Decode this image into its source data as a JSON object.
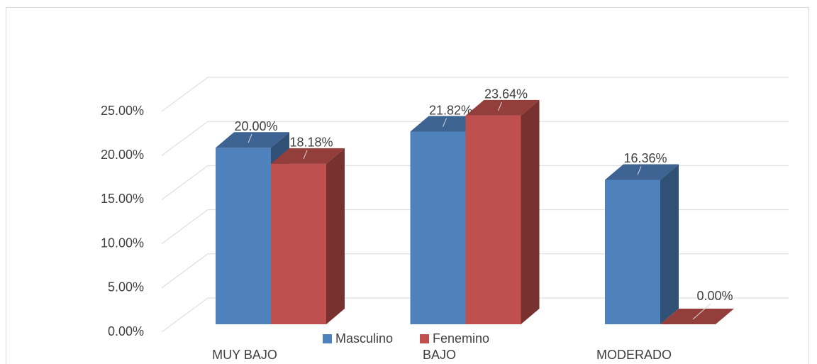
{
  "chart_data": {
    "type": "bar3d",
    "categories": [
      "MUY BAJO",
      "BAJO",
      "MODERADO"
    ],
    "series": [
      {
        "name": "Masculino",
        "color": "#4f81bd",
        "values": [
          20.0,
          21.82,
          16.36
        ],
        "value_labels": [
          "20.00%",
          "21.82%",
          "16.36%"
        ]
      },
      {
        "name": "Fenemino",
        "color": "#c0504d",
        "values": [
          18.18,
          23.64,
          0.0
        ],
        "value_labels": [
          "18.18%",
          "23.64%",
          "0.00%"
        ]
      }
    ],
    "ylim": [
      0,
      25
    ],
    "yticks": [
      {
        "value": 0,
        "label": "0.00%"
      },
      {
        "value": 5,
        "label": "5.00%"
      },
      {
        "value": 10,
        "label": "10.00%"
      },
      {
        "value": 15,
        "label": "15.00%"
      },
      {
        "value": 20,
        "label": "20.00%"
      },
      {
        "value": 25,
        "label": "25.00%"
      }
    ],
    "grid": true,
    "legend": "bottom"
  }
}
